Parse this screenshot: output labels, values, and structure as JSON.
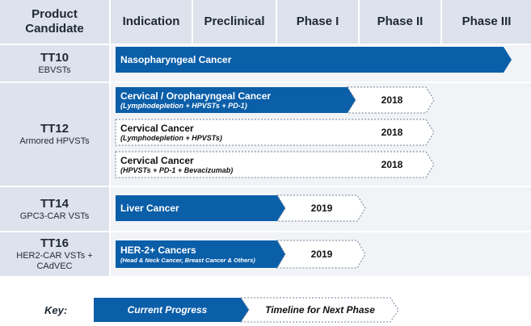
{
  "header": {
    "product_candidate": "Product Candidate",
    "indication": "Indication",
    "preclinical": "Preclinical",
    "phase1": "Phase I",
    "phase2": "Phase II",
    "phase3": "Phase III"
  },
  "rows": [
    {
      "code": "TT10",
      "sub": "EBVSTs"
    },
    {
      "code": "TT12",
      "sub": "Armored HPVSTs"
    },
    {
      "code": "TT14",
      "sub": "GPC3-CAR VSTs"
    },
    {
      "code": "TT16",
      "sub": "HER2-CAR VSTs + CAdVEC"
    }
  ],
  "programs": [
    {
      "title": "Nasopharyngeal Cancer",
      "subtitle": "",
      "year": ""
    },
    {
      "title": "Cervical / Oropharyngeal Cancer",
      "subtitle": "(Lymphodepletion + HPVSTs + PD-1)",
      "year": "2018"
    },
    {
      "title": "Cervical Cancer",
      "subtitle": "(Lymphodepletion + HPVSTs)",
      "year": "2018"
    },
    {
      "title": "Cervical Cancer",
      "subtitle": "(HPVSTs + PD-1 + Bevacizumab)",
      "year": "2018"
    },
    {
      "title": "Liver Cancer",
      "subtitle": "",
      "year": "2019"
    },
    {
      "title": "HER-2+ Cancers",
      "subtitle": "(Head & Neck Cancer, Breast Cancer & Others)",
      "year": "2019"
    }
  ],
  "key": {
    "label": "Key:",
    "current": "Current Progress",
    "next": "Timeline for Next Phase"
  },
  "colors": {
    "primary_blue": "#0b5ea8",
    "header_bg": "#dde2ec",
    "row_bg": "#f1f3f7"
  }
}
